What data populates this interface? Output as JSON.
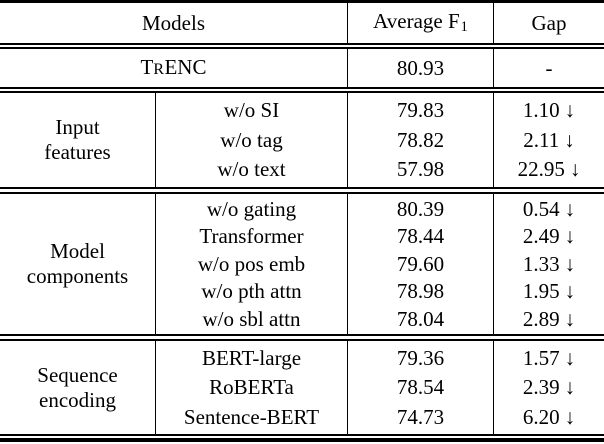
{
  "arrow_down": "↓",
  "header": {
    "models_label": "Models",
    "avg_f1_label": "Average F",
    "avg_f1_subscript": "1",
    "gap_label": "Gap"
  },
  "baseline": {
    "name_initial": "T",
    "name_smallcap": "R",
    "name_rest": "ENC",
    "avg_f1": "80.93",
    "gap": "-"
  },
  "sections": [
    {
      "group_line1": "Input",
      "group_line2": "features",
      "rows": [
        {
          "model": "w/o SI",
          "avg_f1": "79.83",
          "gap": "1.10"
        },
        {
          "model": "w/o tag",
          "avg_f1": "78.82",
          "gap": "2.11"
        },
        {
          "model": "w/o text",
          "avg_f1": "57.98",
          "gap": "22.95"
        }
      ]
    },
    {
      "group_line1": "Model",
      "group_line2": "components",
      "rows": [
        {
          "model": "w/o gating",
          "avg_f1": "80.39",
          "gap": "0.54"
        },
        {
          "model": "Transformer",
          "avg_f1": "78.44",
          "gap": "2.49"
        },
        {
          "model": "w/o pos emb",
          "avg_f1": "79.60",
          "gap": "1.33"
        },
        {
          "model": "w/o pth attn",
          "avg_f1": "78.98",
          "gap": "1.95"
        },
        {
          "model": "w/o sbl attn",
          "avg_f1": "78.04",
          "gap": "2.89"
        }
      ]
    },
    {
      "group_line1": "Sequence",
      "group_line2": "encoding",
      "rows": [
        {
          "model": "BERT-large",
          "avg_f1": "79.36",
          "gap": "1.57"
        },
        {
          "model": "RoBERTa",
          "avg_f1": "78.54",
          "gap": "2.39"
        },
        {
          "model": "Sentence-BERT",
          "avg_f1": "74.73",
          "gap": "6.20"
        }
      ]
    }
  ]
}
